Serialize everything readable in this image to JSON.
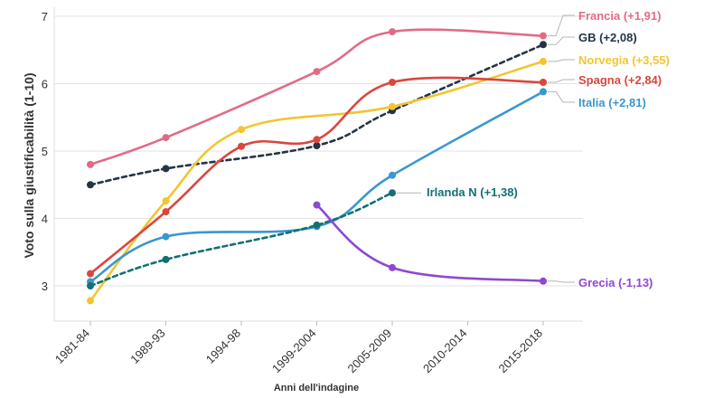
{
  "chart_data": {
    "type": "line",
    "xlabel": "Anni dell'indagine",
    "ylabel": "Voto sulla giustificabilità (1-10)",
    "categories": [
      "1981-84",
      "1989-93",
      "1994-98",
      "1999-2004",
      "2005-2009",
      "2010-2014",
      "2015-2018"
    ],
    "y_ticks": [
      3,
      4,
      5,
      6,
      7
    ],
    "ylim": [
      2.75,
      7.1
    ],
    "grid": "horizontal",
    "legend": "direct labels at line ends (right)",
    "series": [
      {
        "label": "Francia (+1,91)",
        "color": "#e16b86",
        "dashed": false,
        "values": [
          4.8,
          5.2,
          null,
          6.18,
          6.77,
          null,
          6.71
        ]
      },
      {
        "label": "GB (+2,08)",
        "color": "#243447",
        "dashed": true,
        "values": [
          4.5,
          4.74,
          null,
          5.08,
          5.6,
          null,
          6.58
        ]
      },
      {
        "label": "Norvegia (+3,55)",
        "color": "#f2c531",
        "dashed": false,
        "values": [
          2.78,
          4.26,
          5.32,
          null,
          5.66,
          null,
          6.33
        ]
      },
      {
        "label": "Spagna (+2,84)",
        "color": "#d9473f",
        "dashed": false,
        "values": [
          3.18,
          4.1,
          5.07,
          5.17,
          6.02,
          null,
          6.02
        ]
      },
      {
        "label": "Italia (+2,81)",
        "color": "#3a97cf",
        "dashed": false,
        "values": [
          3.06,
          3.73,
          null,
          3.88,
          4.64,
          null,
          5.88
        ]
      },
      {
        "label": "Irlanda N (+1,38)",
        "color": "#127173",
        "dashed": true,
        "values": [
          3.0,
          3.39,
          null,
          3.9,
          4.38,
          null,
          null
        ]
      },
      {
        "label": "Grecia (-1,13)",
        "color": "#8e48d2",
        "dashed": false,
        "values": [
          null,
          null,
          null,
          4.2,
          3.27,
          null,
          3.07
        ]
      }
    ]
  }
}
